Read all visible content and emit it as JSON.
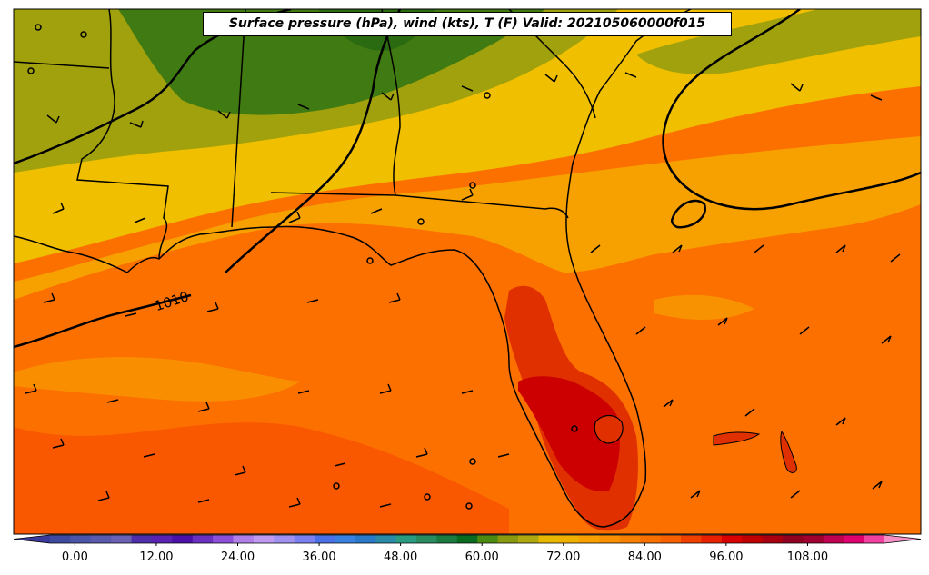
{
  "title": "Surface pressure (hPa), wind (kts), T (F) Valid: 202105060000f015",
  "contour_label": "1010",
  "colorbar": {
    "ticks": [
      "0.00",
      "12.00",
      "24.00",
      "36.00",
      "48.00",
      "60.00",
      "72.00",
      "84.00",
      "96.00",
      "108.00"
    ],
    "tick_values": [
      0,
      12,
      24,
      36,
      48,
      60,
      72,
      84,
      96,
      108
    ],
    "min": -6,
    "max": 120,
    "step": 3,
    "colors": [
      "#3a3a9a",
      "#3d4aa0",
      "#4a55a8",
      "#5a5aac",
      "#6a60b4",
      "#4e2ea8",
      "#5a22b0",
      "#4a10a8",
      "#6a30c0",
      "#8c50d8",
      "#b080e8",
      "#c09af0",
      "#a090f0",
      "#7a80f0",
      "#4a70e8",
      "#3a80e0",
      "#2a78c8",
      "#2a8aa8",
      "#2a9a80",
      "#2a8a60",
      "#1a7a40",
      "#0a6a20",
      "#4a8a10",
      "#8a9a10",
      "#b0a810",
      "#e8b800",
      "#f0b000",
      "#f8a000",
      "#f89000",
      "#f88000",
      "#f87000",
      "#f86000",
      "#f04000",
      "#e82000",
      "#d80000",
      "#c00000",
      "#a80010",
      "#900020",
      "#a00030",
      "#c00050",
      "#e00070",
      "#f040a0",
      "#f890c8"
    ]
  },
  "legend_colors": {
    "dark_green": "#3f7a12",
    "olive": "#a1a10d",
    "yellow": "#efbf00",
    "orange_light": "#f7a100",
    "orange": "#fc7000",
    "orange_dark": "#fa5800",
    "red": "#e03000",
    "dark_red": "#cc0000"
  }
}
